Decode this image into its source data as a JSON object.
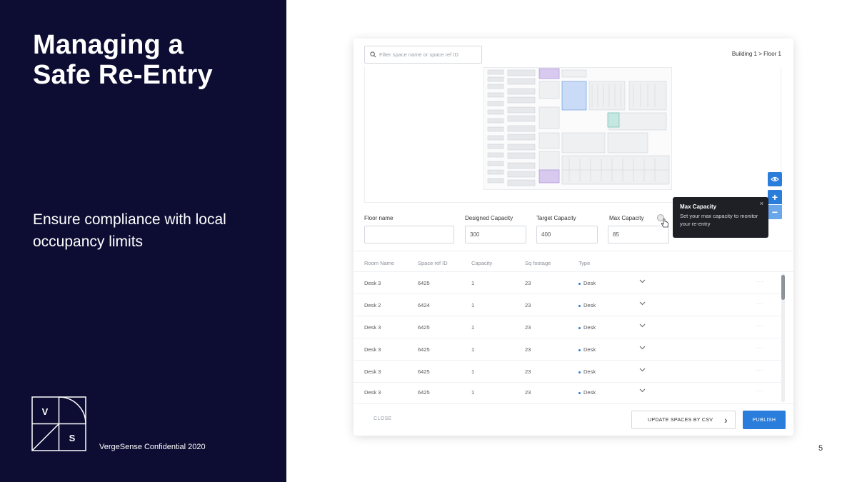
{
  "slide": {
    "title": "Managing a\nSafe Re-Entry",
    "subtitle": "Ensure compliance with local occupancy limits",
    "logo_letters": [
      "V",
      "S"
    ],
    "confidential": "VergeSense Confidential 2020",
    "page_number": "5",
    "background_color": "#0d0d33"
  },
  "app": {
    "search": {
      "placeholder": "Filter space name or space ref ID",
      "icon": "search-icon"
    },
    "breadcrumb": "Building 1 > Floor 1",
    "map_controls": {
      "eye_icon": "eye-icon",
      "zoom_in": "+",
      "zoom_out": "−"
    },
    "fields": {
      "floor_name": {
        "label": "Floor name",
        "value": ""
      },
      "designed_capacity": {
        "label": "Designed Capacity",
        "value": "300"
      },
      "target_capacity": {
        "label": "Target Capacity",
        "value": "400"
      },
      "max_capacity": {
        "label": "Max Capacity",
        "value": "85"
      }
    },
    "tooltip": {
      "title": "Max Capacity",
      "body": "Set your max capacity to monitor your re-entry",
      "close": "×"
    },
    "table": {
      "columns": [
        "Room Name",
        "Space ref ID",
        "Capacity",
        "Sq footage",
        "Type"
      ],
      "rows": [
        {
          "room": "Desk 3",
          "ref": "6425",
          "capacity": "1",
          "sqft": "23",
          "type": "Desk"
        },
        {
          "room": "Desk 2",
          "ref": "6424",
          "capacity": "1",
          "sqft": "23",
          "type": "Desk"
        },
        {
          "room": "Desk 3",
          "ref": "6425",
          "capacity": "1",
          "sqft": "23",
          "type": "Desk"
        },
        {
          "room": "Desk 3",
          "ref": "6425",
          "capacity": "1",
          "sqft": "23",
          "type": "Desk"
        },
        {
          "room": "Desk 3",
          "ref": "6425",
          "capacity": "1",
          "sqft": "23",
          "type": "Desk"
        },
        {
          "room": "Desk 3",
          "ref": "6425",
          "capacity": "1",
          "sqft": "23",
          "type": "Desk"
        }
      ],
      "row_more": "···"
    },
    "footer": {
      "close_label": "CLOSE",
      "csv_label": "UPDATE SPACES BY CSV",
      "csv_arrow": "›",
      "publish_label": "PUBLISH"
    },
    "accent_color": "#2b7ddb",
    "tooltip_color": "#1e2026"
  }
}
